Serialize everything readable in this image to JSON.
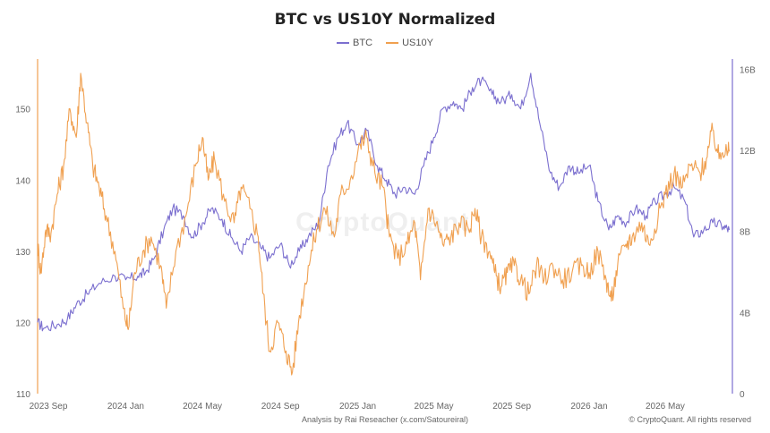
{
  "chart_data": {
    "type": "line",
    "title": "BTC vs US10Y Normalized",
    "x_ticks": [
      "2023 Sep",
      "2024 Jan",
      "2024 May",
      "2024 Sep",
      "2025 Jan",
      "2025 May",
      "2025 Sep",
      "2026 Jan",
      "2026 May"
    ],
    "left_axis": {
      "ticks": [
        "110",
        "120",
        "130",
        "140",
        "150"
      ],
      "ylim": [
        110,
        157
      ]
    },
    "right_axis": {
      "ticks": [
        "0",
        "4B",
        "8B",
        "12B",
        "16B"
      ],
      "ylim": [
        0,
        16.5
      ]
    },
    "x_range": [
      "2023-08-15",
      "2026-08-15"
    ],
    "series": [
      {
        "name": "BTC",
        "axis": "left",
        "color": "#7b6fcf",
        "points": [
          [
            "2023-08-15",
            120
          ],
          [
            "2023-08-25",
            119.2
          ],
          [
            "2023-09-15",
            119.7
          ],
          [
            "2023-10-01",
            120.5
          ],
          [
            "2023-10-15",
            122.5
          ],
          [
            "2023-11-01",
            124
          ],
          [
            "2023-11-20",
            125.5
          ],
          [
            "2023-12-15",
            126.5
          ],
          [
            "2024-01-01",
            126
          ],
          [
            "2024-01-20",
            126.5
          ],
          [
            "2024-02-01",
            127
          ],
          [
            "2024-02-15",
            129
          ],
          [
            "2024-03-01",
            133
          ],
          [
            "2024-03-15",
            136
          ],
          [
            "2024-04-01",
            135
          ],
          [
            "2024-04-15",
            132
          ],
          [
            "2024-05-01",
            134
          ],
          [
            "2024-05-15",
            136
          ],
          [
            "2024-06-01",
            134.5
          ],
          [
            "2024-06-15",
            132
          ],
          [
            "2024-07-01",
            130
          ],
          [
            "2024-07-15",
            132
          ],
          [
            "2024-08-01",
            130.5
          ],
          [
            "2024-08-15",
            129
          ],
          [
            "2024-09-01",
            131
          ],
          [
            "2024-09-15",
            128
          ],
          [
            "2024-10-01",
            130
          ],
          [
            "2024-10-15",
            132
          ],
          [
            "2024-11-01",
            134
          ],
          [
            "2024-11-15",
            142
          ],
          [
            "2024-12-01",
            146
          ],
          [
            "2024-12-15",
            148
          ],
          [
            "2025-01-01",
            145
          ],
          [
            "2025-01-15",
            147
          ],
          [
            "2025-02-01",
            142
          ],
          [
            "2025-02-15",
            140
          ],
          [
            "2025-03-01",
            138
          ],
          [
            "2025-03-15",
            139
          ],
          [
            "2025-04-01",
            138
          ],
          [
            "2025-04-15",
            142
          ],
          [
            "2025-05-01",
            146
          ],
          [
            "2025-05-15",
            150
          ],
          [
            "2025-06-01",
            151
          ],
          [
            "2025-06-15",
            150
          ],
          [
            "2025-07-01",
            153
          ],
          [
            "2025-07-15",
            154
          ],
          [
            "2025-08-01",
            152
          ],
          [
            "2025-08-15",
            151
          ],
          [
            "2025-09-01",
            152
          ],
          [
            "2025-09-15",
            150
          ],
          [
            "2025-10-01",
            155
          ],
          [
            "2025-10-15",
            148
          ],
          [
            "2025-11-01",
            141
          ],
          [
            "2025-11-15",
            139
          ],
          [
            "2025-12-01",
            142
          ],
          [
            "2025-12-15",
            141
          ],
          [
            "2026-01-01",
            142
          ],
          [
            "2026-01-15",
            137
          ],
          [
            "2026-02-01",
            133
          ],
          [
            "2026-02-15",
            135
          ],
          [
            "2026-03-01",
            134
          ],
          [
            "2026-03-15",
            136
          ],
          [
            "2026-04-01",
            135
          ],
          [
            "2026-04-15",
            137
          ],
          [
            "2026-05-01",
            138
          ],
          [
            "2026-05-15",
            139
          ],
          [
            "2026-06-01",
            137
          ],
          [
            "2026-06-15",
            132
          ],
          [
            "2026-07-01",
            133
          ],
          [
            "2026-07-15",
            134
          ],
          [
            "2026-08-01",
            133.5
          ],
          [
            "2026-08-10",
            133
          ]
        ]
      },
      {
        "name": "US10Y",
        "axis": "left",
        "color": "#f0a050",
        "points": [
          [
            "2023-08-15",
            131
          ],
          [
            "2023-08-20",
            127
          ],
          [
            "2023-08-28",
            133
          ],
          [
            "2023-09-05",
            132.5
          ],
          [
            "2023-09-15",
            138
          ],
          [
            "2023-09-25",
            142
          ],
          [
            "2023-10-05",
            150
          ],
          [
            "2023-10-15",
            146
          ],
          [
            "2023-10-22",
            155
          ],
          [
            "2023-11-01",
            148
          ],
          [
            "2023-11-10",
            142
          ],
          [
            "2023-11-20",
            139
          ],
          [
            "2023-12-01",
            135
          ],
          [
            "2023-12-15",
            130
          ],
          [
            "2023-12-28",
            122
          ],
          [
            "2024-01-05",
            119
          ],
          [
            "2024-01-15",
            127
          ],
          [
            "2024-01-28",
            130
          ],
          [
            "2024-02-10",
            132
          ],
          [
            "2024-02-25",
            128
          ],
          [
            "2024-03-05",
            122
          ],
          [
            "2024-03-20",
            130
          ],
          [
            "2024-04-05",
            135
          ],
          [
            "2024-04-20",
            142
          ],
          [
            "2024-05-01",
            146
          ],
          [
            "2024-05-10",
            140
          ],
          [
            "2024-05-20",
            143
          ],
          [
            "2024-06-05",
            137
          ],
          [
            "2024-06-20",
            134
          ],
          [
            "2024-07-01",
            139
          ],
          [
            "2024-07-15",
            136
          ],
          [
            "2024-07-28",
            132
          ],
          [
            "2024-08-05",
            124
          ],
          [
            "2024-08-15",
            116
          ],
          [
            "2024-08-28",
            120
          ],
          [
            "2024-09-10",
            116
          ],
          [
            "2024-09-20",
            113
          ],
          [
            "2024-10-01",
            121
          ],
          [
            "2024-10-15",
            128
          ],
          [
            "2024-10-28",
            133
          ],
          [
            "2024-11-10",
            136
          ],
          [
            "2024-11-25",
            132
          ],
          [
            "2024-12-05",
            138
          ],
          [
            "2024-12-20",
            140
          ],
          [
            "2025-01-05",
            145
          ],
          [
            "2025-01-15",
            146
          ],
          [
            "2025-01-28",
            141
          ],
          [
            "2025-02-10",
            139
          ],
          [
            "2025-02-20",
            132
          ],
          [
            "2025-03-05",
            129
          ],
          [
            "2025-03-20",
            131
          ],
          [
            "2025-04-01",
            134
          ],
          [
            "2025-04-10",
            126
          ],
          [
            "2025-04-22",
            136
          ],
          [
            "2025-05-05",
            134
          ],
          [
            "2025-05-15",
            131
          ],
          [
            "2025-05-28",
            132
          ],
          [
            "2025-06-10",
            134
          ],
          [
            "2025-06-25",
            133
          ],
          [
            "2025-07-05",
            136
          ],
          [
            "2025-07-15",
            132
          ],
          [
            "2025-07-28",
            130
          ],
          [
            "2025-08-05",
            127
          ],
          [
            "2025-08-15",
            125
          ],
          [
            "2025-08-25",
            127
          ],
          [
            "2025-09-05",
            128
          ],
          [
            "2025-09-15",
            126
          ],
          [
            "2025-09-28",
            124
          ],
          [
            "2025-10-10",
            128
          ],
          [
            "2025-10-22",
            126
          ],
          [
            "2025-11-05",
            128
          ],
          [
            "2025-11-20",
            126
          ],
          [
            "2025-12-05",
            127
          ],
          [
            "2025-12-20",
            128
          ],
          [
            "2026-01-01",
            127
          ],
          [
            "2026-01-15",
            130
          ],
          [
            "2026-01-28",
            126
          ],
          [
            "2026-02-05",
            123
          ],
          [
            "2026-02-15",
            128
          ],
          [
            "2026-02-28",
            131
          ],
          [
            "2026-03-10",
            132
          ],
          [
            "2026-03-25",
            134
          ],
          [
            "2026-04-05",
            131
          ],
          [
            "2026-04-20",
            135
          ],
          [
            "2026-05-01",
            138
          ],
          [
            "2026-05-15",
            141
          ],
          [
            "2026-05-28",
            139
          ],
          [
            "2026-06-10",
            142
          ],
          [
            "2026-06-25",
            141
          ],
          [
            "2026-07-05",
            143
          ],
          [
            "2026-07-15",
            147
          ],
          [
            "2026-07-25",
            143
          ],
          [
            "2026-08-05",
            145
          ],
          [
            "2026-08-10",
            144
          ]
        ]
      }
    ],
    "grid": false,
    "legend": "top-center"
  },
  "watermark": "CryptoQuant",
  "footer": {
    "analysis": "Analysis by Rai Reseacher (x.com/Satoureiral)",
    "copyright": "© CryptoQuant. All rights reserved"
  }
}
